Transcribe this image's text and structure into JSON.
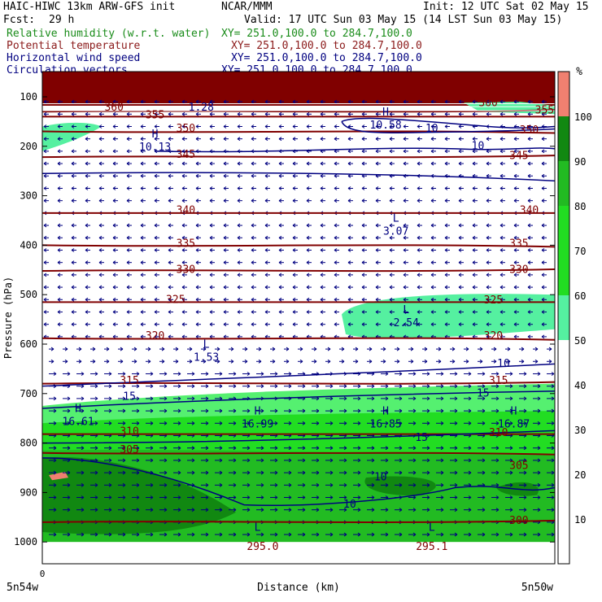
{
  "header": {
    "model": "HAIC-HIWC 13km ARW-GFS init",
    "org": "NCAR/MMM",
    "init": "Init: 12 UTC Sat 02 May 15",
    "fcst_label": "Fcst:",
    "fcst_value": "29 h",
    "valid": "Valid: 17 UTC Sun 03 May 15 (14 LST Sun 03 May 15)",
    "fields": [
      {
        "name": "Relative humidity (w.r.t. water)",
        "xy": "XY= 251.0,100.0 to 284.7,100.0",
        "color": "#1a8c1a"
      },
      {
        "name": "Potential temperature",
        "xy": "XY= 251.0,100.0 to 284.7,100.0",
        "color": "#8b1a1a"
      },
      {
        "name": "Horizontal wind speed",
        "xy": "XY= 251.0,100.0 to 284.7,100.0",
        "color": "#000080"
      },
      {
        "name": "Circulation vectors",
        "xy": "XY= 251.0,100.0 to 284.7,100.0",
        "color": "#000080"
      }
    ]
  },
  "chart_data": {
    "type": "cross-section",
    "ylabel": "Pressure (hPa)",
    "xlabel": "Distance (km)",
    "y_ticks": [
      100,
      200,
      300,
      400,
      500,
      600,
      700,
      800,
      900,
      1000
    ],
    "ylim": [
      50,
      1050
    ],
    "x_ticks": [
      "0"
    ],
    "x_end_labels": [
      "5n54w",
      "5n50w"
    ],
    "colorbar": {
      "unit": "%",
      "ticks": [
        10,
        20,
        30,
        40,
        50,
        60,
        70,
        80,
        90,
        100
      ],
      "bins": [
        {
          "from": 50,
          "to": 60,
          "color": "#55f0a0"
        },
        {
          "from": 60,
          "to": 70,
          "color": "#22dd22"
        },
        {
          "from": 70,
          "to": 80,
          "color": "#22dd22"
        },
        {
          "from": 80,
          "to": 90,
          "color": "#22bb22"
        },
        {
          "from": 90,
          "to": 100,
          "color": "#118811"
        },
        {
          "from": 100,
          "to": 110,
          "color": "#f08070"
        }
      ]
    },
    "theta_contours": [
      {
        "value": "360",
        "p": 130
      },
      {
        "value": "355",
        "p": 140
      },
      {
        "value": "350",
        "p": 170
      },
      {
        "value": "345",
        "p": 222
      },
      {
        "value": "340",
        "p": 335
      },
      {
        "value": "335",
        "p": 400
      },
      {
        "value": "330",
        "p": 452
      },
      {
        "value": "325",
        "p": 515
      },
      {
        "value": "320",
        "p": 588
      },
      {
        "value": "315",
        "p": 680
      },
      {
        "value": "310",
        "p": 782
      },
      {
        "value": "305",
        "p": 820
      },
      {
        "value": "300",
        "p": 960
      }
    ],
    "theta_labels": [
      {
        "text": "360",
        "x": 0.14,
        "p": 122
      },
      {
        "text": "355",
        "p": 138,
        "x": 0.22
      },
      {
        "text": "350",
        "p": 165,
        "x": 0.28
      },
      {
        "text": "345",
        "p": 218,
        "x": 0.28
      },
      {
        "text": "340",
        "p": 330,
        "x": 0.28
      },
      {
        "text": "335",
        "p": 398,
        "x": 0.28
      },
      {
        "text": "330",
        "p": 450,
        "x": 0.28
      },
      {
        "text": "325",
        "p": 511,
        "x": 0.26
      },
      {
        "text": "320",
        "p": 584,
        "x": 0.22
      },
      {
        "text": "315",
        "p": 675,
        "x": 0.17
      },
      {
        "text": "310",
        "p": 778,
        "x": 0.17
      },
      {
        "text": "305",
        "p": 815,
        "x": 0.17
      },
      {
        "text": "360",
        "p": 113,
        "x": 0.87
      },
      {
        "text": "355",
        "p": 128,
        "x": 0.98
      },
      {
        "text": "350",
        "p": 168,
        "x": 0.95
      },
      {
        "text": "345",
        "p": 220,
        "x": 0.93
      },
      {
        "text": "340",
        "p": 330,
        "x": 0.95
      },
      {
        "text": "335",
        "p": 398,
        "x": 0.93
      },
      {
        "text": "330",
        "p": 450,
        "x": 0.93
      },
      {
        "text": "325",
        "p": 512,
        "x": 0.88
      },
      {
        "text": "320",
        "p": 584,
        "x": 0.88
      },
      {
        "text": "315",
        "p": 675,
        "x": 0.89
      },
      {
        "text": "310",
        "p": 780,
        "x": 0.89
      },
      {
        "text": "305",
        "p": 847,
        "x": 0.93
      },
      {
        "text": "300",
        "p": 958,
        "x": 0.93
      },
      {
        "text": "295.0",
        "p": 1010,
        "x": 0.43
      },
      {
        "text": "295.1",
        "p": 1010,
        "x": 0.76
      }
    ],
    "wind_labels": [
      {
        "text": "1.28",
        "p": 122,
        "x": 0.31
      },
      {
        "text": "10",
        "p": 165,
        "x": 0.76
      },
      {
        "text": "10",
        "p": 200,
        "x": 0.85
      },
      {
        "text": "10",
        "p": 640,
        "x": 0.9
      },
      {
        "text": "15",
        "p": 707,
        "x": 0.17
      },
      {
        "text": "15",
        "p": 700,
        "x": 0.86
      },
      {
        "text": "15",
        "p": 790,
        "x": 0.74
      },
      {
        "text": "10",
        "p": 870,
        "x": 0.66
      },
      {
        "text": "10",
        "p": 925,
        "x": 0.6
      }
    ],
    "extrema": [
      {
        "kind": "H",
        "value": "10.58",
        "p": 145,
        "x": 0.67
      },
      {
        "kind": "H",
        "value": "10.13",
        "p": 190,
        "x": 0.22
      },
      {
        "kind": "L",
        "value": "3.07",
        "p": 360,
        "x": 0.69
      },
      {
        "kind": "L",
        "value": "2.54",
        "p": 545,
        "x": 0.71
      },
      {
        "kind": "L",
        "value": "1.53",
        "p": 615,
        "x": 0.32
      },
      {
        "kind": "H",
        "value": "16.61",
        "p": 745,
        "x": 0.07
      },
      {
        "kind": "H",
        "value": "16.99",
        "p": 750,
        "x": 0.42
      },
      {
        "kind": "H",
        "value": "16.85",
        "p": 750,
        "x": 0.67
      },
      {
        "kind": "H",
        "value": "16.87",
        "p": 750,
        "x": 0.92
      },
      {
        "kind": "L",
        "value": "",
        "p": 985,
        "x": 0.42
      },
      {
        "kind": "L",
        "value": "",
        "p": 985,
        "x": 0.76
      }
    ]
  }
}
